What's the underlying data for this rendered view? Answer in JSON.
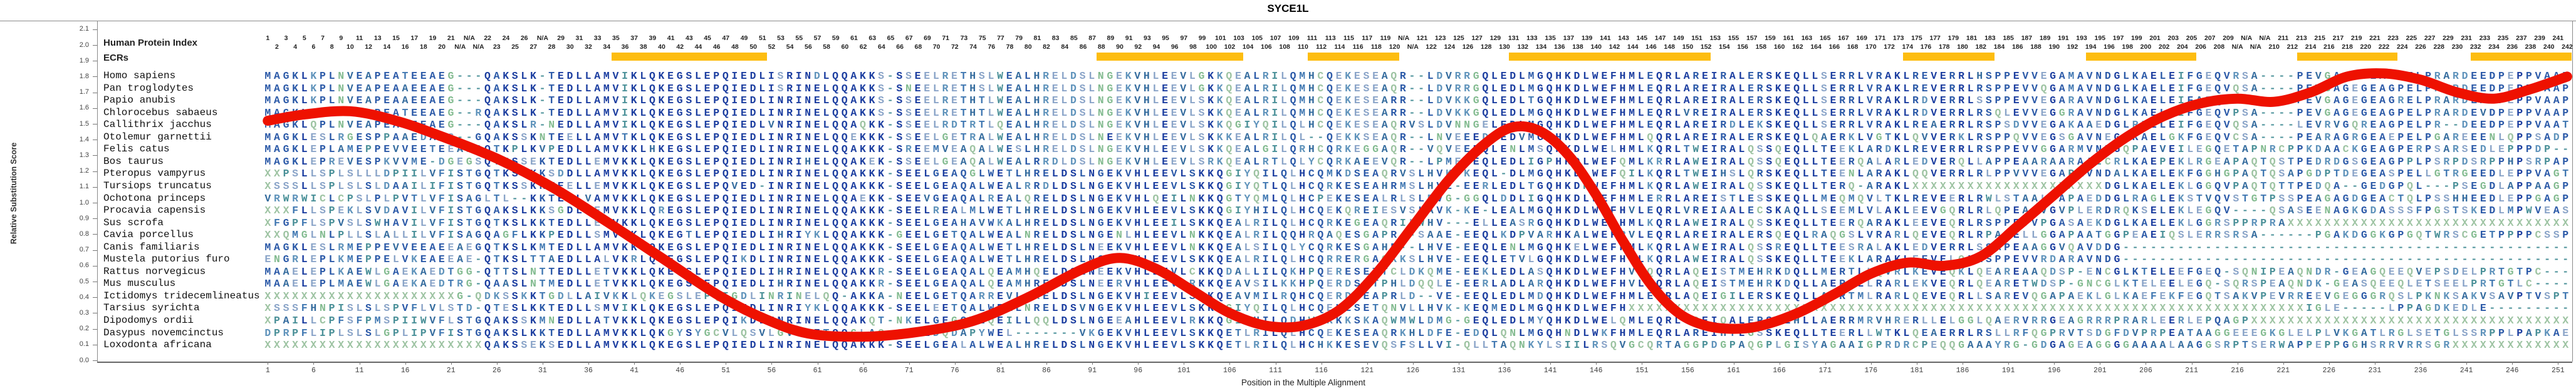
{
  "title": "SYCE1L",
  "y_axis": {
    "label": "Relative Substitution Score",
    "tick_min": 0.0,
    "tick_max": 2.1,
    "tick_step": 0.1,
    "ticks": [
      "0.0",
      "0.1",
      "0.2",
      "0.3",
      "0.4",
      "0.5",
      "0.6",
      "0.7",
      "0.8",
      "0.9",
      "1.0",
      "1.1",
      "1.2",
      "1.3",
      "1.4",
      "1.5",
      "1.6",
      "1.7",
      "1.8",
      "1.9",
      "2.0",
      "2.1"
    ]
  },
  "x_axis": {
    "label": "Position in the Multiple Alignment",
    "tick_start": 1,
    "tick_step": 5,
    "tick_end": 251
  },
  "header": {
    "row1_label": "Human Protein Index",
    "row2_label": "ECRs",
    "na_text": "N/A",
    "num_columns": 252,
    "index_runs": [
      [
        1,
        21,
        1
      ],
      [
        22,
        24,
        null
      ],
      [
        25,
        30,
        22
      ],
      [
        31,
        31,
        null
      ],
      [
        32,
        124,
        28
      ],
      [
        125,
        126,
        null
      ],
      [
        127,
        215,
        121
      ],
      [
        216,
        219,
        null
      ],
      [
        220,
        252,
        210
      ]
    ]
  },
  "ecr_bars": {
    "color": "#fdbd10",
    "column_ranges": [
      [
        39,
        55
      ],
      [
        92,
        107
      ],
      [
        115,
        124
      ],
      [
        137,
        158
      ],
      [
        180,
        189
      ],
      [
        200,
        211
      ],
      [
        223,
        233
      ],
      [
        242,
        252
      ]
    ]
  },
  "colors": {
    "curve_red": "#ee1100",
    "ecr_orange": "#fdbd10",
    "conserved_navy": "#1c3ea0",
    "semi_conserved_blue": "#2c5aa8",
    "letter_palette": [
      "#4178b2",
      "#5f93bb",
      "#4a9098",
      "#83bb90",
      "#8aa4c8",
      "#9dc3a2",
      "#356c9e"
    ],
    "frame_gray": "#8a8a8a"
  },
  "species": [
    {
      "name": "Homo sapiens",
      "seq_chunks": [
        "MAGKLKPLNVEAPEATEEAEG---QAKSLK-TEDLLAMVIKLQKEGSLEPQIEDLISRINDLQQAKKS",
        "SSEELRETHSLWEALHRELDSLNGEKVHLEEVLGKKQEALRILQMHCQEKESEAQR--LDVR",
        "RGQLEDLMGQHKDLWEFHMLEQRLAREIRALERSKEQLLSERRLVRAKLREVERRLHSPPEV",
        "VEGAMAVNDGLKAELEIFGEQVRSA----PEVGAGEGEAGPELPRARDEEDPEPPVAAPDAL"
      ]
    },
    {
      "name": "Pan troglodytes",
      "seq_chunks": [
        "MAGKLKPLNVEAPEAAEEAEG---QAKSLK-TEDLLAMVIKLQKEGSLEPQIEDLISRINELQQAKKS",
        "SNEELRETHSLWEALHRELDSLNGEKVHLEEVLGKKQEALRILQMHCQEKESEAQR--LDVR",
        "RGQLEDLMGQHKDLWEFHMLEQRLAREIRALERSKEQLLSERRLVRAKLREVERRLRSPPEV",
        "VQGAMAVNDGLKAELEIFGEQVQSA----PEVGAGEGEAGPELPRARDEEDPEPPVAAPDAL"
      ]
    },
    {
      "name": "Papio anubis",
      "seq_chunks": [
        "MAGKLKPLNVEAPEAAEEAEG---QAKSLK-TEDLLAMVIKLQKEGSLEPQIEDLINRINELQQAKKS",
        "SSEELRETHTLWEALHRELDSLNGEKVHLEEVLSKKQEALRILQMHCQEKESEARR--LDVK",
        "KGQLEDLTGQHKDLWEFHMLEQRLAREIRALERSKEQLLSERRLVRAKLRDVERRLSSPPEV",
        "VEGARAVNDGLKAELEIFAEQVPSA----PEVGAGEGEAGRELPRARDEADPEPPVAAPDAX"
      ]
    },
    {
      "name": "Chlorocebus sabaeus",
      "seq_chunks": [
        "MAGKLKPLNVEAPEATEEAEG--RQAKSLK-TEDLLAMVIKLQKEGSLEPQIEDLINRINELQQAKKS",
        "SSEELRETHTLWEALHRELDSLNGEKVHLEEVLSKKQEALRILQMHCQEKESEARR--LDVK",
        "KGQLEDLMGQHKDLWEFHMLEQRLVREIRALERSKEQLLSERRLVRAKLRDVERRLRSQLEV",
        "VEGGRAVNDGLKAELEIFGEQVPSA----PEVGAGEGEAGPELPRARDEVDPEPPVAAPDAP"
      ]
    },
    {
      "name": "Callithrix jacchus",
      "seq_chunks": [
        "MAGKLQPLNVEAPEAAEEAEG---QAKSLR-NEDLLAMVIKLQKEGSLEPQIEDLVNRINELQQAQKK",
        "SSEELRDTRTLQEALHRELDSLNGEKVHLEEVLSKKQGIYQILQLHCQEKESEAQRVSLDVN",
        "NGELEDLMGQHKDLWEFHMLEQRLAREIRDLEKSKEQLLSERRLVRAKLREAERRLRSPSDV",
        "VEGAKAAEDGLREELEIFGEQVQSA----LEVRVGQREAGPELPR--DEEDPEPPVAATEAP"
      ]
    },
    {
      "name": "Otolemur garnettii",
      "seq_chunks": [
        "MAGKLESLRGESPPAAEDAES--GQAKSSKNTEELLAMVTKLQKEGSLEPQIEDLINRINELQQEKKK",
        "SSEELGETRALWEALHRELDSLNEEKVHLEEVLSKKKEALRILQL--QEKKSEAQR--LNVE",
        "EEDLEDVMGQHKDLWEFHMLQQRLAREIRALERSKEQLQAERKLVGTKLQVVERKLRSPPQV",
        "VEGSGAVNEGLKAELGKFGEQVCSA----PEARAGRGEAEPELPGAREEENLQPPSADPDTC"
      ]
    },
    {
      "name": "Felis catus",
      "seq_chunks": [
        "MAGKLEPLAMEPPEVVEETEEAEGQTKPLKVPEDLLAMVKKLHKEGSLEPQIEDLINRINELQQAKKK",
        "SREEMVEAQALWESLHRELDSLNGEKVHLEEVLSKKQEALGILQRHCQRKEGGAQR--VQVE",
        "EEQLENLMSQHKDLWELHMLKQRLTWEIRALQSSQEQLLTEEKLARDKLREVERRLRSPPEV",
        "VGGARMVNDGQPAEVEILEGQETAPNRCPPKDAACKGEAGPERPSARSEDLEPPPDP-----"
      ]
    },
    {
      "name": "Bos taurus",
      "seq_chunks": [
        "MAGKLEPREVESPKVVME-DGEGSQTESSEKTEDLLEMVKKLQKEGSLEPQIEDLINRIHELQQAKEK",
        "SSEELGEAQALWEALRRDLDSLNGEKVHLEEVLSRKQEALRTLQLYCQRKAEEVQR--LPME",
        "EEQLEDLIGPHKDLWEFQMLKRRLAWEIRALQSSQEQLLTEERQALARLEDVERQLLAPPEA",
        "ARAARAAICRLKAEPEKLRGEAPAQTQSTPEDRDGSGEAGPPLPSRPDSRPPHPSRPAPSSP"
      ]
    },
    {
      "name": "Pteropus vampyrus",
      "seq_chunks": [
        "XXPSLLSPLSLLLDPIILVFISTGQTKSSKKSDDLLAMVKKLQKEGSLEPQIEDLINRINELQQAKKK",
        "SEELGEAQGLWETLHRELDSLNGEKVHLEEVLSKKQGIYQILQLHCQMKDSEAQRVSLHVK",
        "KEQL-DLMGQHKDLWEFQILKQRLTWEIHSLQRSKEQLLTEENLARAKLQQVERRLRLPPVV",
        "VEGAPAVNDALKAELEKFGGHGPAQTQSAPGDPTDEGEASPELLGTRGEEDLEPPVAGTGAF"
      ]
    },
    {
      "name": "Tursiops truncatus",
      "seq_chunks": [
        "XSSSLLSPLSLSLDAAILIFISTGQTKSSKKTEELLEMVKKLQKEGSLEPQVED-INRINELQQAKKK",
        "SEELGEAQALWEALRRDLDSLNGEKVHLEEVLSKKQGIYQTLQLHCQRKESEAHRMSLHVE",
        "EERLEDLTGQHKDPWEFHMLKQRLAWEIRALQSSKEQLLTERQ-ARAKLXXXXXXXXXXXXX",
        "XXXXXXXXDGLKAELEKLGGQVPAQTQTTPEDQA--GEDGPQL---PSEGDLAPPAAGPDAP"
      ]
    },
    {
      "name": "Ochotona princeps",
      "seq_chunks": [
        "VRWRWICLCPSLPLPVTLVFISAGLTL--KKTEGLVAMVKKLQKEGSLEPQIEDLINRINELQQAEKK",
        "SEEVGEAQALREALQRELDSLNGEKVHLQEILNKKQGTYQMLQLHCPEKESEALRLSLDVG",
        "GGQLDDLIGQHKDLWEFHMLERRLAREISTLESSKEQLLMEQMQVLTKLREVEERLRWLSTA",
        "ALDAPAEDDGLRAGLEKSTVQVSTGTPSSPEAGAGDGEACTQLPSSHHEEDLEPPGAGPDAP"
      ]
    },
    {
      "name": "Procavia capensis",
      "seq_chunks": [
        "XXXFLLSPEKLSVDAVILVFISTGQAKSLKKSGDLLEMVKKLQREGSLEPQIEDLINRINELQQAKKK",
        "SEELREALMLWETLHRELDSLNGEKVHLEEVLSKKQGIYHILQLHCQEKQREIESVSLAVK",
        "KE-LEALMGQHKDLWEFHVLEQRLVREIAALECSKAQLLSEEMLVLAKLEEVGQRLRLQPEA",
        "AVGVPLERDRQKSELEKLEGQV----QSASEENAGKGDASSSFPGSTSKEDLMPWVEASDTX"
      ]
    },
    {
      "name": "Sus scrofa",
      "seq_chunks": [
        "XFGPFLSPVSLSWHAVILVFISTGQTKSLKKTEDLLEMVKKLQKEGSLEPQIEDLINRINELQQAKKK",
        "SEELGEAHAVWKALHRELDSLNGEKVHLEEILSKKQEALRILQLHCQRKEGEAQRILWHV-",
        "-ELLEASRGQHKDLWEFHMLKQRLAWEIRALQSSKEQLLTEERQARAKLEEVEQRLRSPPEV",
        "VPGASAEKDGLKAELEKLGGRSPPRPRAXXXXXXXXXXXXXXXXXXXXXXXXXXXXXXX"
      ]
    },
    {
      "name": "Cavia porcellus",
      "seq_chunks": [
        "XXQMGLNLPLLSLALLILVFISAGQAGFLKKPEDLLSMVEKLQKEGTLEPQIEDLIHRIYKLQQAKKK",
        "GEELGETQALWEALNRELDSLNGENLHLEEVLNKKQEALRILQQHRQAQESGAPR--SAAE",
        "EEQLKDPVARHKALWEFRVLEQRLAREIRALERSQEQLRAQGSLVRARLQEVEQRLRPAPEL",
        "LGGAPAATGGPEAEIQSLERRSRSA------PGAKDGGKGPGQTWRSCGETPPPPCSSPPGL"
      ]
    },
    {
      "name": "Canis familiaris",
      "seq_chunks": [
        "MAGKLESLRMEPPEVVEEAEEAEGQTKSLKMTEDLLAMVKKLQKEGSLEPQIEDLINRINELQQAKKK",
        "SEELGEAQALWETLHRELDSLNEEKVHLEEVLNKKQEALSILQLYCQRKESGAHR--LHVE",
        "EEQLENLMGQHKELWEFHMLKQRLAWEIRALQSSREQLLTEESRALAKLEDVERRLSSAPEA",
        "AGGVQAVDDG-------------------------------------------------"
      ]
    },
    {
      "name": "Mustela putorius furo",
      "seq_chunks": [
        "ENGRLEPLKMEPPELVKEAEEAE-QTKSLTTAEDLLALVKRLQKEGSLEPQIKDLINRINELQQAKKK",
        "SEELGEAQALWETLHRELDSLNGEKMHLEEVLSKKQEALRILQLHCQRRERGAQKKSLHVE",
        "EEQLETVLGQHKDLWEFHVLKQRLAWEIRALQSSKEQLLTEEKLARAKLEEVELQLRSPPEV",
        "VRDARAVNDG-------------------------------------------------"
      ]
    },
    {
      "name": "Rattus norvegicus",
      "seq_chunks": [
        "MAAELEPLKAEWLGAEKAEDTGG-QTTSLNTTEDLLETVKKLQKEGSLEPQIEDLIHRINELQQAKKR",
        "SEELGEAQALQEAMHQELDSLNEEKVHLEEVLCKKQDALLILQKHPQERESETTCLDKQME",
        "EEKLEDLASQHKDLWEFHVLQQRLAQEISTMEHRKDQLLMERTLLQVRLKEVEQKLQEAREA",
        "AQDSP-ENCGLKTELEEFGEQ-SQNIPEAQNDR-GEAGQEEQVEPSDELPRTGTPC---"
      ]
    },
    {
      "name": "Mus musculus",
      "seq_chunks": [
        "MAAELEPLMAEWLGAEKAEDTRG-QAASLNTMEDLLETVKKLQKEGSLEPQIEDLIHRINELQQAKKR",
        "SEELGEAQALQEAMHRELDSLNEERVHLEEVLRKKQEAVSILKKHPQERDSDTPHLDQQLE",
        "EERLADLARQHKDLWEFHVLQQRLAQEISTMEHRKDQLLAERTLLRARLEKVEQRLQEARET",
        "WDSP-GNCGLKTELEELEGQ-SQRSPEAQNDK-GEASQEEQLETSEELPRTGTLC----"
      ]
    },
    {
      "name": "Ictidomys tridecemlineatus",
      "seq_chunks": [
        "XXXXXXXXXXXXXXXXXXXXXG-QDKSSKKTGDLLAIVKKLQKEGSLEPQIGDLINRINELQQ-AKKA",
        "NEELGETQARREVLCKELDSLNGEKVHIEEVLSKKQEAVMILRQHCQERDSEAPRLD--VE",
        "EEQLEDLMDQHKDLWEFHMLEQRLAQEIGILERSKEQLLAERTMLRARLQEVEQRLLSAREV",
        "QGAPAEKLGLKAEFEKFEGQTSAKVPEVRREEVGEGGGRQSLPKNKSAKVSAVPTVSPTDL"
      ]
    },
    {
      "name": "Tarsius syrichta",
      "seq_chunks": [
        "XSSSFHNPISLSLSPVFLVLSTD-QTESLKKTEDLLSMVIKLQKEGSLEPQIEDLINRIYKLQQAKKK",
        "SEELEETQALWEALNRELDSVNGEKVHLEEVLSKKQGIYQILQLHCQEKESETQNVLLHVK",
        "KEQMEDLMGQHKDLWEFHXXXXXXXXXXXXXXXXXXXXXXXXXXXXXXXXXXXXXXXXXXXX",
        "XXXXXXXXXXXXXXXXXXXXXXXXXXXXXXIGLE-----LPPAGDKEDLE---------"
      ]
    },
    {
      "name": "Dipodomys ordii",
      "seq_chunks": [
        "XPAILLCPFSFPMSPIIWVFLSTGQAKSSKMNEDLLATVKKLQKEGSLEPQIKDLINRINELQQAKQT",
        "NKELGEGQTLQEILLQQLDSLNGEEAHLEEVLRKKQGICHILQDHWHKKKSKAQWMWLDMG",
        "GEQLEDLMYQHKDLWELQMLEQRLTQEIQALERSLEHLLAERRMRVHRERLLELGGLQAERV",
        "RRGEAGRRRPRARLEERLEPQAGPXXXXXXXXXXXXXXXXXXXXXXXXXXXXXXXXXXX"
      ]
    },
    {
      "name": "Dasypus novemcinctus",
      "seq_chunks": [
        "DPRPFLIPLSLSLGPLIPVFISTGQAKSLKKTEDLLAMVKKLQKGYSYGCVLQSVLGVGNETQQGLAQ",
        "GEKLDQDAPYWEL-------VKGEKVHLEEVLSKKQETLRILQLHCQEKESEAQRKHLDFE",
        "EDQLQNLMGQHNDLWKFHMLEQRLAREIHTLGSSKEQLLTEERLLWTKLQEAERRLRSLLRF",
        "QGPRVTSDGFDVPRPEATAAGGEEEGKGLELPLVKGATLRGLSETGLSSRPPLPAPKAELE"
      ]
    },
    {
      "name": "Loxodonta africana",
      "seq_chunks": [
        "XXXXXXXXXXXXXXXXXXXXXXXXQAKSSEKSEDLLAMVKKLQKEGSLEPQIEDLINRINELQQAKKK",
        "SEELGEALALWEALHRELDSLNGEKVHLEEVLSKKQETLRILQLHCHKKESEVQSFSLLVI",
        "QLLTAQNKYLSIILRSQVGCQRTAGGPDGPAQGPLGISYAGAAIGPRDRCPEQQGAAAYRG",
        "GDGAGEAGGGGAAAALAAGGSRPTSERWAPPEPPGGHSRRVRRSGRXXXXXXXXXXXXX"
      ]
    }
  ],
  "chart_data": {
    "type": "line",
    "title": "SYCE1L",
    "xlabel": "Position in the Multiple Alignment",
    "ylabel": "Relative Substitution Score",
    "ylim": [
      0.0,
      2.1
    ],
    "xlim": [
      1,
      252
    ],
    "grid": false,
    "series_color": "#ee1100",
    "points": [
      [
        1,
        1.52
      ],
      [
        5,
        1.56
      ],
      [
        10,
        1.58
      ],
      [
        15,
        1.52
      ],
      [
        20,
        1.42
      ],
      [
        26,
        1.28
      ],
      [
        32,
        1.1
      ],
      [
        38,
        0.88
      ],
      [
        44,
        0.65
      ],
      [
        50,
        0.42
      ],
      [
        55,
        0.27
      ],
      [
        60,
        0.17
      ],
      [
        66,
        0.15
      ],
      [
        72,
        0.18
      ],
      [
        78,
        0.25
      ],
      [
        84,
        0.4
      ],
      [
        90,
        0.58
      ],
      [
        94,
        0.65
      ],
      [
        98,
        0.58
      ],
      [
        102,
        0.44
      ],
      [
        106,
        0.3
      ],
      [
        110,
        0.22
      ],
      [
        114,
        0.22
      ],
      [
        118,
        0.32
      ],
      [
        122,
        0.55
      ],
      [
        126,
        0.85
      ],
      [
        130,
        1.15
      ],
      [
        134,
        1.38
      ],
      [
        137,
        1.48
      ],
      [
        140,
        1.45
      ],
      [
        143,
        1.3
      ],
      [
        146,
        1.05
      ],
      [
        149,
        0.75
      ],
      [
        152,
        0.48
      ],
      [
        155,
        0.3
      ],
      [
        158,
        0.22
      ],
      [
        161,
        0.2
      ],
      [
        164,
        0.22
      ],
      [
        168,
        0.3
      ],
      [
        172,
        0.42
      ],
      [
        176,
        0.55
      ],
      [
        180,
        0.62
      ],
      [
        184,
        0.6
      ],
      [
        188,
        0.66
      ],
      [
        192,
        0.85
      ],
      [
        196,
        1.05
      ],
      [
        200,
        1.25
      ],
      [
        204,
        1.42
      ],
      [
        208,
        1.55
      ],
      [
        212,
        1.63
      ],
      [
        216,
        1.66
      ],
      [
        220,
        1.64
      ],
      [
        224,
        1.7
      ],
      [
        228,
        1.8
      ],
      [
        232,
        1.82
      ],
      [
        236,
        1.78
      ],
      [
        240,
        1.7
      ],
      [
        244,
        1.66
      ],
      [
        248,
        1.72
      ],
      [
        252,
        1.8
      ]
    ]
  }
}
